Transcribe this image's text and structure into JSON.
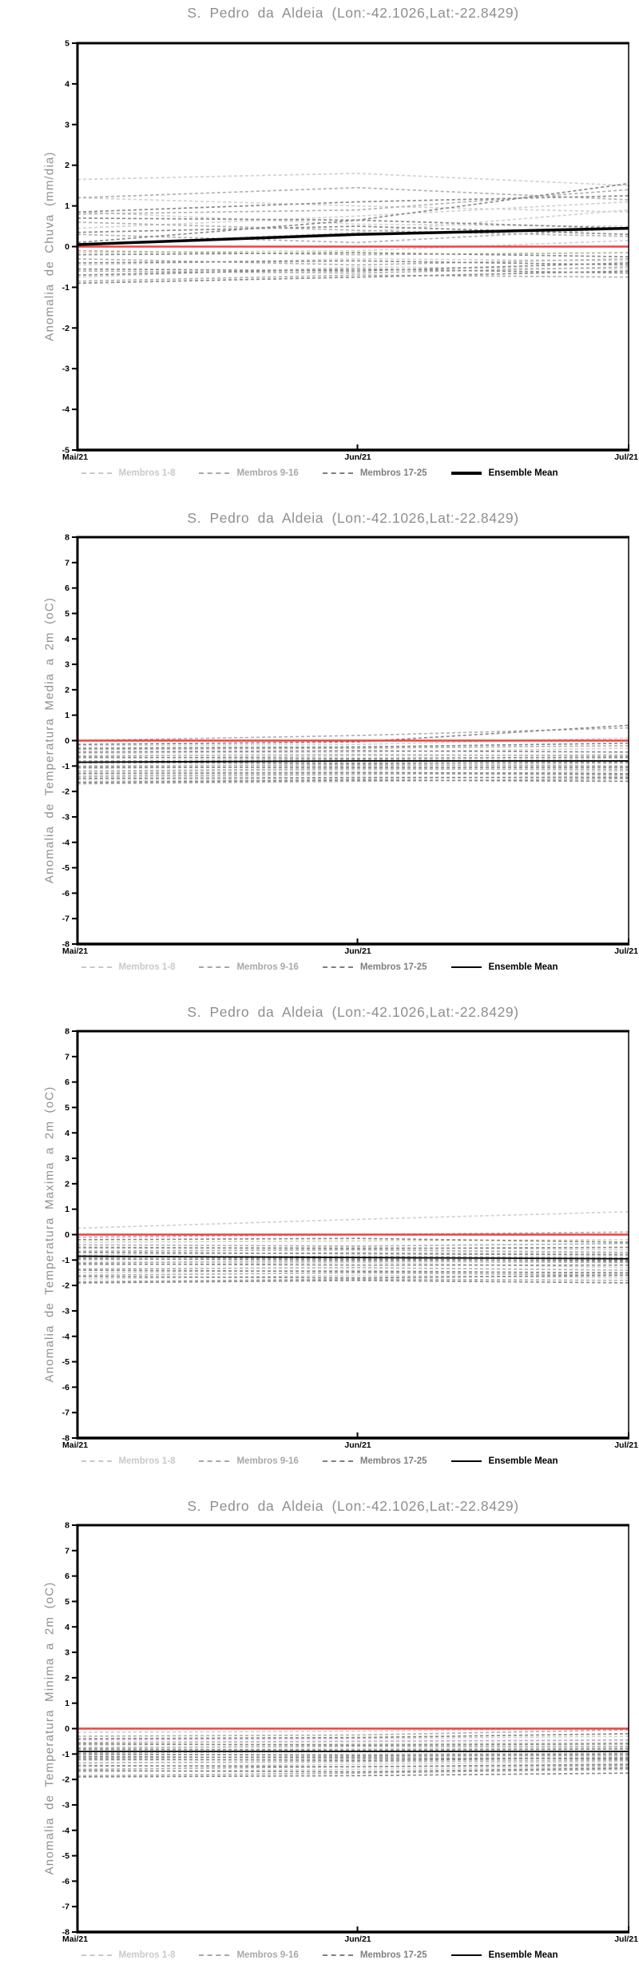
{
  "colors": {
    "background": "#ffffff",
    "title_text": "#8f8f8f",
    "axis": "#000000",
    "tick_label": "#000000",
    "members_1_8": "#d2d2d2",
    "members_9_16": "#b2b2b2",
    "members_17_25": "#8c8c8c",
    "ensemble_mean": "#000000",
    "zero_line": "#f04141"
  },
  "chart_data": [
    {
      "type": "line",
      "title": "S. Pedro da Aldeia (Lon:-42.1026,Lat:-22.8429)",
      "ylabel": "Anomalia de Chuva (mm/dia)",
      "xlabel": "",
      "x_tick_labels": [
        "Mai/21",
        "Jun/21",
        "Jul/21"
      ],
      "x_positions": [
        0,
        0.508,
        1
      ],
      "ylim": [
        -5,
        5
      ],
      "ytick_step": 1,
      "grid": false,
      "mean_width": 3.5,
      "zero_line": {
        "name": "climatologia-zero",
        "color": "#f04141",
        "values": [
          0,
          0,
          0
        ]
      },
      "series": [
        {
          "name": "Membros 1-8",
          "color": "#d2d2d2",
          "style": "dashed",
          "values_set": [
            [
              1.65,
              1.8,
              1.5
            ],
            [
              1.2,
              1.0,
              0.85
            ],
            [
              0.85,
              0.55,
              0.5
            ],
            [
              0.45,
              0.75,
              1.1
            ],
            [
              0.05,
              0.35,
              0.9
            ],
            [
              -0.15,
              -0.1,
              0.15
            ],
            [
              -0.45,
              -0.3,
              -0.35
            ],
            [
              -0.75,
              -0.5,
              -0.55
            ]
          ]
        },
        {
          "name": "Membros 9-16",
          "color": "#b2b2b2",
          "style": "dashed",
          "values_set": [
            [
              1.2,
              1.45,
              1.15
            ],
            [
              0.8,
              0.9,
              1.4
            ],
            [
              0.6,
              0.4,
              0.25
            ],
            [
              0.3,
              0.1,
              0.45
            ],
            [
              -0.1,
              -0.2,
              -0.15
            ],
            [
              -0.3,
              -0.45,
              -0.3
            ],
            [
              -0.6,
              -0.65,
              -0.5
            ],
            [
              -0.85,
              -0.7,
              -0.75
            ]
          ]
        },
        {
          "name": "Membros 17-25",
          "color": "#8c8c8c",
          "style": "dashed",
          "values_set": [
            [
              0.85,
              1.1,
              1.25
            ],
            [
              0.7,
              0.65,
              1.55
            ],
            [
              0.35,
              0.5,
              0.3
            ],
            [
              0.1,
              0.65,
              0.45
            ],
            [
              -0.2,
              -0.15,
              -0.25
            ],
            [
              -0.4,
              -0.35,
              -0.45
            ],
            [
              -0.55,
              -0.6,
              -0.4
            ],
            [
              -0.7,
              -0.55,
              -0.65
            ],
            [
              -0.9,
              -0.75,
              -0.6
            ]
          ]
        },
        {
          "name": "Ensemble Mean",
          "color": "#000000",
          "style": "solid",
          "values": [
            0.05,
            0.3,
            0.45
          ]
        }
      ],
      "legend": [
        {
          "label": "Membros 1-8",
          "color": "#c9c9c9",
          "style": "dashed"
        },
        {
          "label": "Membros 9-16",
          "color": "#a8a8a8",
          "style": "dashed"
        },
        {
          "label": "Membros 17-25",
          "color": "#7f7f7f",
          "style": "dashed"
        },
        {
          "label": "Ensemble Mean",
          "color": "#000000",
          "style": "solid",
          "weight": 4
        }
      ],
      "legend_position": "bottom"
    },
    {
      "type": "line",
      "title": "S. Pedro da Aldeia (Lon:-42.1026,Lat:-22.8429)",
      "ylabel": "Anomalia de Temperatura Media a 2m (oC)",
      "xlabel": "",
      "x_tick_labels": [
        "Mai/21",
        "Jun/21",
        "Jul/21"
      ],
      "x_positions": [
        0,
        0.508,
        1
      ],
      "ylim": [
        -8,
        8
      ],
      "ytick_step": 1,
      "grid": false,
      "mean_width": 1.8,
      "zero_line": {
        "name": "climatologia-zero",
        "color": "#f04141",
        "values": [
          0,
          0,
          0
        ]
      },
      "series": [
        {
          "name": "Membros 1-8",
          "color": "#d2d2d2",
          "style": "dashed",
          "values_set": [
            [
              -0.2,
              -0.15,
              0.1
            ],
            [
              -0.5,
              -0.45,
              -0.3
            ],
            [
              -0.7,
              -0.6,
              -0.55
            ],
            [
              -0.9,
              -0.85,
              -0.7
            ],
            [
              -1.1,
              -1.0,
              -0.9
            ],
            [
              -1.25,
              -1.15,
              -1.1
            ],
            [
              -1.45,
              -1.35,
              -1.2
            ],
            [
              -1.6,
              -1.5,
              -1.4
            ]
          ]
        },
        {
          "name": "Membros 9-16",
          "color": "#b2b2b2",
          "style": "dashed",
          "values_set": [
            [
              0.0,
              0.2,
              0.5
            ],
            [
              -0.35,
              -0.3,
              -0.2
            ],
            [
              -0.6,
              -0.55,
              -0.6
            ],
            [
              -0.8,
              -0.75,
              -0.8
            ],
            [
              -1.0,
              -0.95,
              -1.0
            ],
            [
              -1.2,
              -1.1,
              -1.15
            ],
            [
              -1.4,
              -1.3,
              -1.35
            ],
            [
              -1.7,
              -1.6,
              -1.5
            ]
          ]
        },
        {
          "name": "Membros 17-25",
          "color": "#8c8c8c",
          "style": "dashed",
          "values_set": [
            [
              -0.15,
              -0.05,
              0.6
            ],
            [
              -0.3,
              -0.25,
              -0.1
            ],
            [
              -0.45,
              -0.4,
              -0.45
            ],
            [
              -0.65,
              -0.7,
              -0.65
            ],
            [
              -0.85,
              -0.9,
              -0.85
            ],
            [
              -1.05,
              -1.05,
              -1.05
            ],
            [
              -1.3,
              -1.25,
              -1.3
            ],
            [
              -1.5,
              -1.45,
              -1.45
            ],
            [
              -1.65,
              -1.55,
              -1.6
            ]
          ]
        },
        {
          "name": "Ensemble Mean",
          "color": "#000000",
          "style": "solid",
          "values": [
            -0.85,
            -0.8,
            -0.8
          ]
        }
      ],
      "legend": [
        {
          "label": "Membros 1-8",
          "color": "#c9c9c9",
          "style": "dashed"
        },
        {
          "label": "Membros 9-16",
          "color": "#a8a8a8",
          "style": "dashed"
        },
        {
          "label": "Membros 17-25",
          "color": "#7f7f7f",
          "style": "dashed"
        },
        {
          "label": "Ensemble Mean",
          "color": "#000000",
          "style": "solid",
          "weight": 2
        }
      ],
      "legend_position": "bottom"
    },
    {
      "type": "line",
      "title": "S. Pedro da Aldeia (Lon:-42.1026,Lat:-22.8429)",
      "ylabel": "Anomalia de Temperatura Maxima a 2m (oC)",
      "xlabel": "",
      "x_tick_labels": [
        "Mai/21",
        "Jun/21",
        "Jul/21"
      ],
      "x_positions": [
        0,
        0.508,
        1
      ],
      "ylim": [
        -8,
        8
      ],
      "ytick_step": 1,
      "grid": false,
      "mean_width": 1.8,
      "zero_line": {
        "name": "climatologia-zero",
        "color": "#f04141",
        "values": [
          0,
          0,
          0
        ]
      },
      "series": [
        {
          "name": "Membros 1-8",
          "color": "#d2d2d2",
          "style": "dashed",
          "values_set": [
            [
              0.25,
              0.6,
              0.9
            ],
            [
              -0.3,
              -0.25,
              -0.2
            ],
            [
              -0.55,
              -0.5,
              -0.6
            ],
            [
              -0.8,
              -0.7,
              -0.75
            ],
            [
              -1.0,
              -0.9,
              -1.0
            ],
            [
              -1.2,
              -1.1,
              -1.3
            ],
            [
              -1.5,
              -1.4,
              -1.55
            ],
            [
              -1.75,
              -1.6,
              -1.7
            ]
          ]
        },
        {
          "name": "Membros 9-16",
          "color": "#b2b2b2",
          "style": "dashed",
          "values_set": [
            [
              -0.1,
              0.0,
              0.1
            ],
            [
              -0.4,
              -0.45,
              -0.35
            ],
            [
              -0.65,
              -0.6,
              -0.7
            ],
            [
              -0.9,
              -0.85,
              -0.9
            ],
            [
              -1.1,
              -1.05,
              -1.1
            ],
            [
              -1.35,
              -1.3,
              -1.4
            ],
            [
              -1.6,
              -1.5,
              -1.6
            ],
            [
              -1.85,
              -1.75,
              -1.8
            ]
          ]
        },
        {
          "name": "Membros 17-25",
          "color": "#8c8c8c",
          "style": "dashed",
          "values_set": [
            [
              -0.2,
              -0.15,
              -0.3
            ],
            [
              -0.5,
              -0.55,
              -0.5
            ],
            [
              -0.7,
              -0.75,
              -0.8
            ],
            [
              -0.95,
              -1.0,
              -1.0
            ],
            [
              -1.15,
              -1.2,
              -1.2
            ],
            [
              -1.4,
              -1.45,
              -1.5
            ],
            [
              -1.65,
              -1.7,
              -1.6
            ],
            [
              -1.9,
              -1.8,
              -1.9
            ],
            [
              -0.85,
              -0.95,
              -1.05
            ]
          ]
        },
        {
          "name": "Ensemble Mean",
          "color": "#000000",
          "style": "solid",
          "values": [
            -0.85,
            -0.9,
            -0.95
          ]
        }
      ],
      "legend": [
        {
          "label": "Membros 1-8",
          "color": "#c9c9c9",
          "style": "dashed"
        },
        {
          "label": "Membros 9-16",
          "color": "#a8a8a8",
          "style": "dashed"
        },
        {
          "label": "Membros 17-25",
          "color": "#7f7f7f",
          "style": "dashed"
        },
        {
          "label": "Ensemble Mean",
          "color": "#000000",
          "style": "solid",
          "weight": 2
        }
      ],
      "legend_position": "bottom"
    },
    {
      "type": "line",
      "title": "S. Pedro da Aldeia (Lon:-42.1026,Lat:-22.8429)",
      "ylabel": "Anomalia de Temperatura Minima a 2m (oC)",
      "xlabel": "",
      "x_tick_labels": [
        "Mai/21",
        "Jun/21",
        "Jul/21"
      ],
      "x_positions": [
        0,
        0.508,
        1
      ],
      "ylim": [
        -8,
        8
      ],
      "ytick_step": 1,
      "grid": false,
      "mean_width": 1.8,
      "zero_line": {
        "name": "climatologia-zero",
        "color": "#f04141",
        "values": [
          0,
          0,
          0
        ]
      },
      "series": [
        {
          "name": "Membros 1-8",
          "color": "#d2d2d2",
          "style": "dashed",
          "values_set": [
            [
              -0.15,
              -0.1,
              0.0
            ],
            [
              -0.45,
              -0.4,
              -0.3
            ],
            [
              -0.65,
              -0.6,
              -0.55
            ],
            [
              -0.85,
              -0.8,
              -0.75
            ],
            [
              -1.05,
              -1.0,
              -0.95
            ],
            [
              -1.25,
              -1.2,
              -1.1
            ],
            [
              -1.5,
              -1.4,
              -1.3
            ],
            [
              -1.7,
              -1.6,
              -1.5
            ]
          ]
        },
        {
          "name": "Membros 9-16",
          "color": "#b2b2b2",
          "style": "dashed",
          "values_set": [
            [
              -0.3,
              -0.25,
              -0.05
            ],
            [
              -0.55,
              -0.5,
              -0.45
            ],
            [
              -0.75,
              -0.7,
              -0.7
            ],
            [
              -0.95,
              -0.9,
              -0.9
            ],
            [
              -1.15,
              -1.1,
              -1.05
            ],
            [
              -1.35,
              -1.3,
              -1.25
            ],
            [
              -1.6,
              -1.5,
              -1.45
            ],
            [
              -1.85,
              -1.75,
              -1.6
            ]
          ]
        },
        {
          "name": "Membros 17-25",
          "color": "#8c8c8c",
          "style": "dashed",
          "values_set": [
            [
              -0.4,
              -0.35,
              -0.2
            ],
            [
              -0.6,
              -0.65,
              -0.6
            ],
            [
              -0.8,
              -0.85,
              -0.8
            ],
            [
              -1.0,
              -1.05,
              -1.0
            ],
            [
              -1.2,
              -1.25,
              -1.15
            ],
            [
              -1.45,
              -1.5,
              -1.4
            ],
            [
              -1.65,
              -1.7,
              -1.55
            ],
            [
              -1.9,
              -1.85,
              -1.75
            ],
            [
              -1.1,
              -1.15,
              -1.2
            ]
          ]
        },
        {
          "name": "Ensemble Mean",
          "color": "#000000",
          "style": "solid",
          "values": [
            -0.9,
            -0.9,
            -0.9
          ]
        }
      ],
      "legend": [
        {
          "label": "Membros 1-8",
          "color": "#c9c9c9",
          "style": "dashed"
        },
        {
          "label": "Membros 9-16",
          "color": "#a8a8a8",
          "style": "dashed"
        },
        {
          "label": "Membros 17-25",
          "color": "#7f7f7f",
          "style": "dashed"
        },
        {
          "label": "Ensemble Mean",
          "color": "#000000",
          "style": "solid",
          "weight": 2
        }
      ],
      "legend_position": "bottom"
    }
  ]
}
